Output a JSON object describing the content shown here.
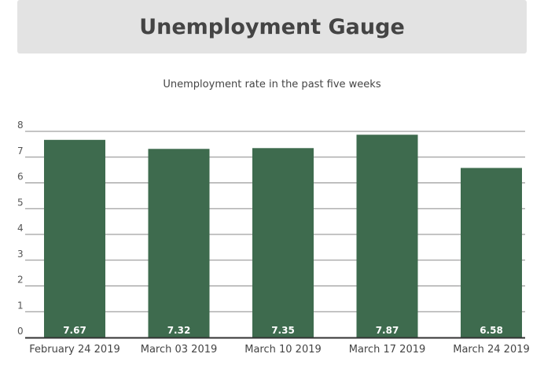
{
  "header": {
    "title": "Unemployment Gauge"
  },
  "chart_data": {
    "type": "bar",
    "title": "Unemployment rate in the past five weeks",
    "categories": [
      "February 24 2019",
      "March 03 2019",
      "March 10 2019",
      "March 17 2019",
      "March 24 2019"
    ],
    "values": [
      7.67,
      7.32,
      7.35,
      7.87,
      6.58
    ],
    "value_labels": [
      "7.67",
      "7.32",
      "7.35",
      "7.87",
      "6.58"
    ],
    "ylim": [
      0,
      8
    ],
    "yticks": [
      "0",
      "1",
      "2",
      "3",
      "4",
      "5",
      "6",
      "7",
      "8"
    ],
    "grid": true,
    "bar_color": "#3e6b4e",
    "xlabel": "",
    "ylabel": ""
  }
}
